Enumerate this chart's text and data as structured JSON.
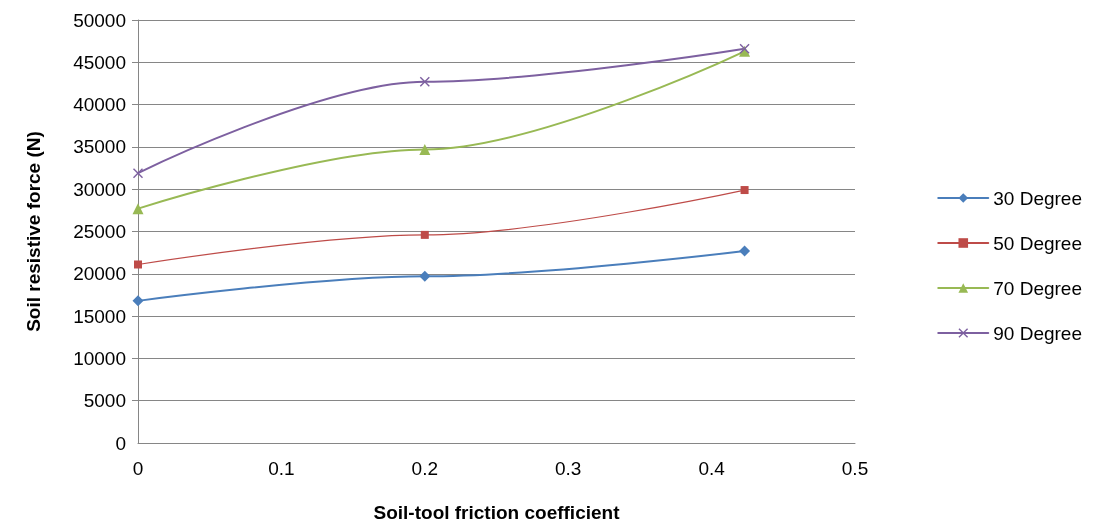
{
  "chart_data": {
    "type": "line",
    "xlabel": "Soil-tool friction coefficient",
    "ylabel": "Soil resistive force (N)",
    "x": [
      0,
      0.2,
      0.423
    ],
    "series": [
      {
        "name": "30 Degree",
        "color": "#4a7ebb",
        "marker": "diamond",
        "values": [
          16800,
          19700,
          22700
        ]
      },
      {
        "name": "50 Degree",
        "color": "#be4b48",
        "marker": "square",
        "values": [
          21100,
          24600,
          29900
        ]
      },
      {
        "name": "70 Degree",
        "color": "#98b954",
        "marker": "triangle",
        "values": [
          27700,
          34700,
          46300
        ]
      },
      {
        "name": "90 Degree",
        "color": "#7d60a0",
        "marker": "cross",
        "values": [
          31900,
          42700,
          46600
        ]
      }
    ],
    "xlim": [
      0,
      0.5
    ],
    "xticks": [
      0,
      0.1,
      0.2,
      0.3,
      0.4,
      0.5
    ],
    "ylim": [
      0,
      50000
    ],
    "yticks": [
      0,
      5000,
      10000,
      15000,
      20000,
      25000,
      30000,
      35000,
      40000,
      45000,
      50000
    ],
    "grid": "y",
    "legend": "right",
    "line_style": "solid"
  }
}
